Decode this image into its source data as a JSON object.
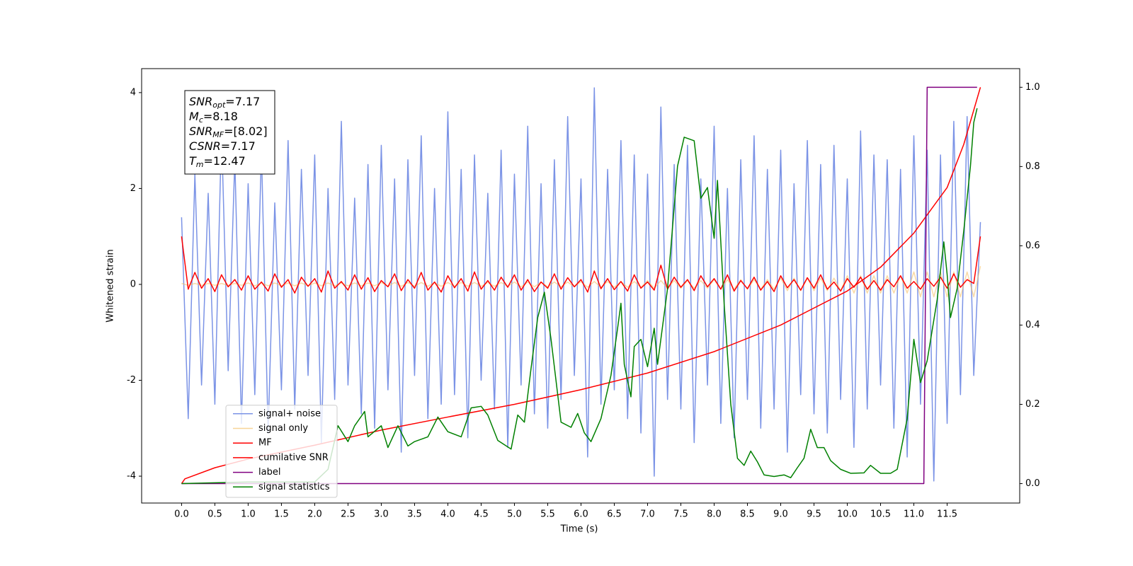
{
  "chart_data": {
    "type": "line",
    "xlabel": "Time (s)",
    "ylabel": "Whitened strain",
    "xlim": [
      -0.6,
      12.59
    ],
    "xticks": [
      {
        "value": 0,
        "label": "0.0"
      },
      0.5,
      {
        "value": 1,
        "label": "1.0"
      },
      1.5,
      {
        "value": 2,
        "label": "2.0"
      },
      2.5,
      {
        "value": 3,
        "label": "3.0"
      },
      3.5,
      {
        "value": 4,
        "label": "4.0"
      },
      4.5,
      {
        "value": 5,
        "label": "5.0"
      },
      5.5,
      {
        "value": 6,
        "label": "6.0"
      },
      6.5,
      {
        "value": 7,
        "label": "7.0"
      },
      7.5,
      {
        "value": 8,
        "label": "8.0"
      },
      8.5,
      {
        "value": 9,
        "label": "9.0"
      },
      9.5,
      {
        "value": 10,
        "label": "10.0"
      },
      10.5,
      {
        "value": 11,
        "label": "11.0"
      },
      11.5
    ],
    "ylim": [
      -4.56,
      4.5
    ],
    "yticks": [
      -4,
      -2,
      0,
      2,
      4
    ],
    "y2lim": [
      -0.049,
      1.047
    ],
    "y2ticks": [
      {
        "value": 0,
        "label": "0.0"
      },
      0.2,
      0.4,
      0.6,
      0.8,
      {
        "value": 1,
        "label": "1.0"
      }
    ],
    "legend": "lower left",
    "annotations": [
      {
        "symbol": "SNR",
        "subscript": "opt",
        "text": "=7.17"
      },
      {
        "symbol": "M",
        "subscript": "c",
        "text": "=8.18"
      },
      {
        "symbol": "SNR",
        "subscript": "MF",
        "text": "=[8.02]"
      },
      {
        "symbol": "CSNR",
        "subscript": "",
        "text": "=7.17"
      },
      {
        "symbol": "T",
        "subscript": "m",
        "text": "=12.47"
      }
    ],
    "x": [
      0,
      0.1,
      0.2,
      0.3,
      0.4,
      0.5,
      0.6,
      0.7,
      0.8,
      0.9,
      1,
      1.1,
      1.2,
      1.3,
      1.4,
      1.5,
      1.6,
      1.7,
      1.8,
      1.9,
      2,
      2.1,
      2.2,
      2.3,
      2.4,
      2.5,
      2.6,
      2.7,
      2.8,
      2.9,
      3,
      3.1,
      3.2,
      3.3,
      3.4,
      3.5,
      3.6,
      3.7,
      3.8,
      3.9,
      4,
      4.1,
      4.2,
      4.3,
      4.4,
      4.5,
      4.6,
      4.7,
      4.8,
      4.9,
      5,
      5.1,
      5.2,
      5.3,
      5.4,
      5.5,
      5.6,
      5.7,
      5.8,
      5.9,
      6,
      6.1,
      6.2,
      6.3,
      6.4,
      6.5,
      6.6,
      6.7,
      6.8,
      6.9,
      7,
      7.1,
      7.2,
      7.3,
      7.4,
      7.5,
      7.6,
      7.7,
      7.8,
      7.9,
      8,
      8.1,
      8.2,
      8.3,
      8.4,
      8.5,
      8.6,
      8.7,
      8.8,
      8.9,
      9,
      9.1,
      9.2,
      9.3,
      9.4,
      9.5,
      9.6,
      9.7,
      9.8,
      9.9,
      10,
      10.1,
      10.2,
      10.3,
      10.4,
      10.5,
      10.6,
      10.7,
      10.8,
      10.9,
      11,
      11.1,
      11.2,
      11.3,
      11.4,
      11.5,
      11.6,
      11.7,
      11.8,
      11.9,
      12
    ],
    "series": [
      {
        "name": "signal+ noise",
        "color": "#7b93e6",
        "values": [
          1.4,
          -2.8,
          2.3,
          -2.1,
          1.9,
          -2.5,
          3.2,
          -1.8,
          2.6,
          -2.9,
          2.1,
          -2.3,
          2.8,
          -3.1,
          1.7,
          -2.2,
          3.0,
          -2.6,
          2.4,
          -1.9,
          2.7,
          -3.3,
          2.0,
          -2.4,
          3.4,
          -2.1,
          1.8,
          -2.7,
          2.5,
          -3.0,
          2.9,
          -2.2,
          2.2,
          -3.5,
          2.6,
          -1.9,
          3.1,
          -2.8,
          2.0,
          -2.5,
          3.6,
          -2.3,
          2.4,
          -3.2,
          2.7,
          -2.0,
          1.9,
          -2.6,
          2.8,
          -3.4,
          2.3,
          -2.1,
          3.3,
          -2.7,
          2.1,
          -3.0,
          2.6,
          -2.4,
          3.5,
          -1.9,
          2.2,
          -3.6,
          4.1,
          -2.5,
          2.4,
          -2.2,
          3.0,
          -2.8,
          2.7,
          -3.1,
          2.3,
          -4.0,
          3.7,
          -2.4,
          2.5,
          -2.6,
          2.9,
          -3.3,
          2.2,
          -2.1,
          3.3,
          -2.9,
          2.0,
          -3.2,
          2.6,
          -2.4,
          3.1,
          -3.0,
          2.4,
          -2.6,
          2.8,
          -3.5,
          2.1,
          -2.3,
          3.0,
          -2.7,
          2.5,
          -3.1,
          2.9,
          -2.4,
          2.2,
          -3.4,
          3.2,
          -2.6,
          2.7,
          -2.1,
          2.6,
          -3.0,
          2.4,
          -3.6,
          3.1,
          -2.5,
          2.8,
          -4.1,
          2.7,
          -2.9,
          3.4,
          -2.3,
          3.5,
          -1.9,
          1.3
        ]
      },
      {
        "name": "signal only",
        "color": "#f5c26b",
        "values": [
          0.02,
          -0.02,
          0.02,
          -0.02,
          0.02,
          -0.02,
          0.02,
          -0.02,
          0.02,
          -0.02,
          0.03,
          -0.03,
          0.03,
          -0.03,
          0.03,
          -0.03,
          0.03,
          -0.03,
          0.03,
          -0.03,
          0.03,
          -0.03,
          0.03,
          -0.03,
          0.03,
          -0.03,
          0.03,
          -0.03,
          0.03,
          -0.03,
          0.04,
          -0.04,
          0.04,
          -0.04,
          0.04,
          -0.04,
          0.04,
          -0.04,
          0.04,
          -0.04,
          0.04,
          -0.04,
          0.04,
          -0.04,
          0.04,
          -0.04,
          0.04,
          -0.04,
          0.04,
          -0.04,
          0.05,
          -0.05,
          0.05,
          -0.05,
          0.05,
          -0.05,
          0.05,
          -0.05,
          0.05,
          -0.05,
          0.06,
          -0.06,
          0.06,
          -0.06,
          0.06,
          -0.06,
          0.06,
          -0.06,
          0.06,
          -0.06,
          0.08,
          -0.08,
          0.08,
          -0.08,
          0.08,
          -0.08,
          0.08,
          -0.08,
          0.08,
          -0.08,
          0.1,
          -0.1,
          0.1,
          -0.1,
          0.1,
          -0.1,
          0.1,
          -0.1,
          0.1,
          -0.1,
          0.13,
          -0.13,
          0.13,
          -0.13,
          0.13,
          -0.13,
          0.13,
          -0.13,
          0.13,
          -0.13,
          0.18,
          -0.18,
          0.18,
          -0.18,
          0.18,
          -0.18,
          0.18,
          -0.18,
          0.18,
          -0.18,
          0.26,
          -0.26,
          0.26,
          -0.26,
          0.26,
          -0.26,
          0.26,
          -0.26,
          0.26,
          -0.26,
          0.38
        ]
      },
      {
        "name": "MF",
        "color": "#ff0000",
        "values": [
          1.0,
          -0.1,
          0.25,
          -0.08,
          0.12,
          -0.15,
          0.2,
          -0.05,
          0.1,
          -0.12,
          0.18,
          -0.1,
          0.05,
          -0.14,
          0.22,
          -0.06,
          0.1,
          -0.18,
          0.15,
          -0.04,
          0.12,
          -0.16,
          0.28,
          -0.08,
          0.06,
          -0.12,
          0.2,
          -0.1,
          0.14,
          -0.15,
          0.08,
          -0.05,
          0.22,
          -0.13,
          0.1,
          -0.08,
          0.25,
          -0.12,
          0.05,
          -0.16,
          0.18,
          -0.07,
          0.12,
          -0.14,
          0.26,
          -0.1,
          0.08,
          -0.12,
          0.15,
          -0.06,
          0.2,
          -0.12,
          0.1,
          -0.15,
          0.05,
          -0.08,
          0.22,
          -0.1,
          0.14,
          -0.05,
          0.1,
          -0.16,
          0.28,
          -0.09,
          0.12,
          -0.11,
          0.06,
          -0.14,
          0.2,
          -0.08,
          0.05,
          -0.12,
          0.4,
          -0.1,
          0.15,
          -0.06,
          0.1,
          -0.13,
          0.18,
          -0.05,
          0.12,
          -0.1,
          0.2,
          -0.14,
          0.08,
          -0.09,
          0.15,
          -0.12,
          0.06,
          -0.15,
          0.18,
          -0.07,
          0.1,
          -0.12,
          0.14,
          -0.08,
          0.2,
          -0.1,
          0.05,
          -0.14,
          0.12,
          -0.06,
          0.15,
          -0.1,
          0.08,
          -0.12,
          0.1,
          -0.05,
          0.18,
          -0.08,
          0.06,
          -0.1,
          0.12,
          -0.04,
          0.15,
          -0.08,
          0.22,
          -0.06,
          0.1,
          0.02,
          1.0
        ]
      },
      {
        "name": "cumilative SNR",
        "color": "#ff0000",
        "axis": "y2",
        "x": [
          0,
          0.05,
          0.5,
          1,
          2,
          3,
          4,
          5,
          6,
          7,
          8,
          9,
          10,
          10.5,
          11,
          11.5,
          11.75,
          12
        ],
        "values": [
          0,
          0.012,
          0.04,
          0.062,
          0.097,
          0.135,
          0.168,
          0.2,
          0.237,
          0.279,
          0.333,
          0.4,
          0.486,
          0.546,
          0.632,
          0.747,
          0.856,
          1.0
        ]
      },
      {
        "name": "label",
        "color": "#800080",
        "axis": "y2",
        "x": [
          0,
          11.15,
          11.2,
          11.95
        ],
        "values": [
          0,
          0,
          1,
          1
        ]
      },
      {
        "name": "signal statistics",
        "color": "#008000",
        "axis": "y2",
        "x": [
          0,
          1,
          2,
          2.2,
          2.35,
          2.5,
          2.6,
          2.75,
          2.8,
          3,
          3.1,
          3.25,
          3.4,
          3.5,
          3.7,
          3.85,
          4,
          4.2,
          4.35,
          4.5,
          4.6,
          4.75,
          4.95,
          5.05,
          5.15,
          5.25,
          5.35,
          5.45,
          5.55,
          5.7,
          5.85,
          5.95,
          6.05,
          6.15,
          6.3,
          6.45,
          6.55,
          6.6,
          6.65,
          6.75,
          6.8,
          6.9,
          7,
          7.1,
          7.15,
          7.3,
          7.45,
          7.55,
          7.7,
          7.8,
          7.9,
          8,
          8.05,
          8.15,
          8.25,
          8.35,
          8.45,
          8.55,
          8.65,
          8.75,
          8.9,
          9.05,
          9.15,
          9.25,
          9.35,
          9.45,
          9.55,
          9.65,
          9.75,
          9.9,
          10.05,
          10.25,
          10.35,
          10.5,
          10.65,
          10.75,
          10.9,
          11,
          11.1,
          11.2,
          11.35,
          11.45,
          11.5,
          11.55,
          11.65,
          11.75,
          11.85,
          11.9,
          11.95
        ],
        "values": [
          0,
          0.004,
          0.004,
          0.036,
          0.146,
          0.106,
          0.146,
          0.182,
          0.118,
          0.146,
          0.091,
          0.146,
          0.095,
          0.106,
          0.118,
          0.168,
          0.131,
          0.118,
          0.191,
          0.195,
          0.173,
          0.109,
          0.087,
          0.173,
          0.155,
          0.291,
          0.419,
          0.483,
          0.364,
          0.155,
          0.142,
          0.177,
          0.128,
          0.106,
          0.164,
          0.273,
          0.392,
          0.455,
          0.301,
          0.219,
          0.346,
          0.364,
          0.295,
          0.392,
          0.301,
          0.492,
          0.801,
          0.874,
          0.865,
          0.72,
          0.747,
          0.619,
          0.765,
          0.455,
          0.2,
          0.064,
          0.046,
          0.082,
          0.055,
          0.022,
          0.018,
          0.022,
          0.015,
          0.04,
          0.064,
          0.137,
          0.091,
          0.091,
          0.058,
          0.036,
          0.026,
          0.027,
          0.046,
          0.026,
          0.026,
          0.036,
          0.164,
          0.364,
          0.255,
          0.31,
          0.464,
          0.61,
          0.528,
          0.419,
          0.492,
          0.638,
          0.801,
          0.911,
          0.947
        ]
      }
    ]
  }
}
